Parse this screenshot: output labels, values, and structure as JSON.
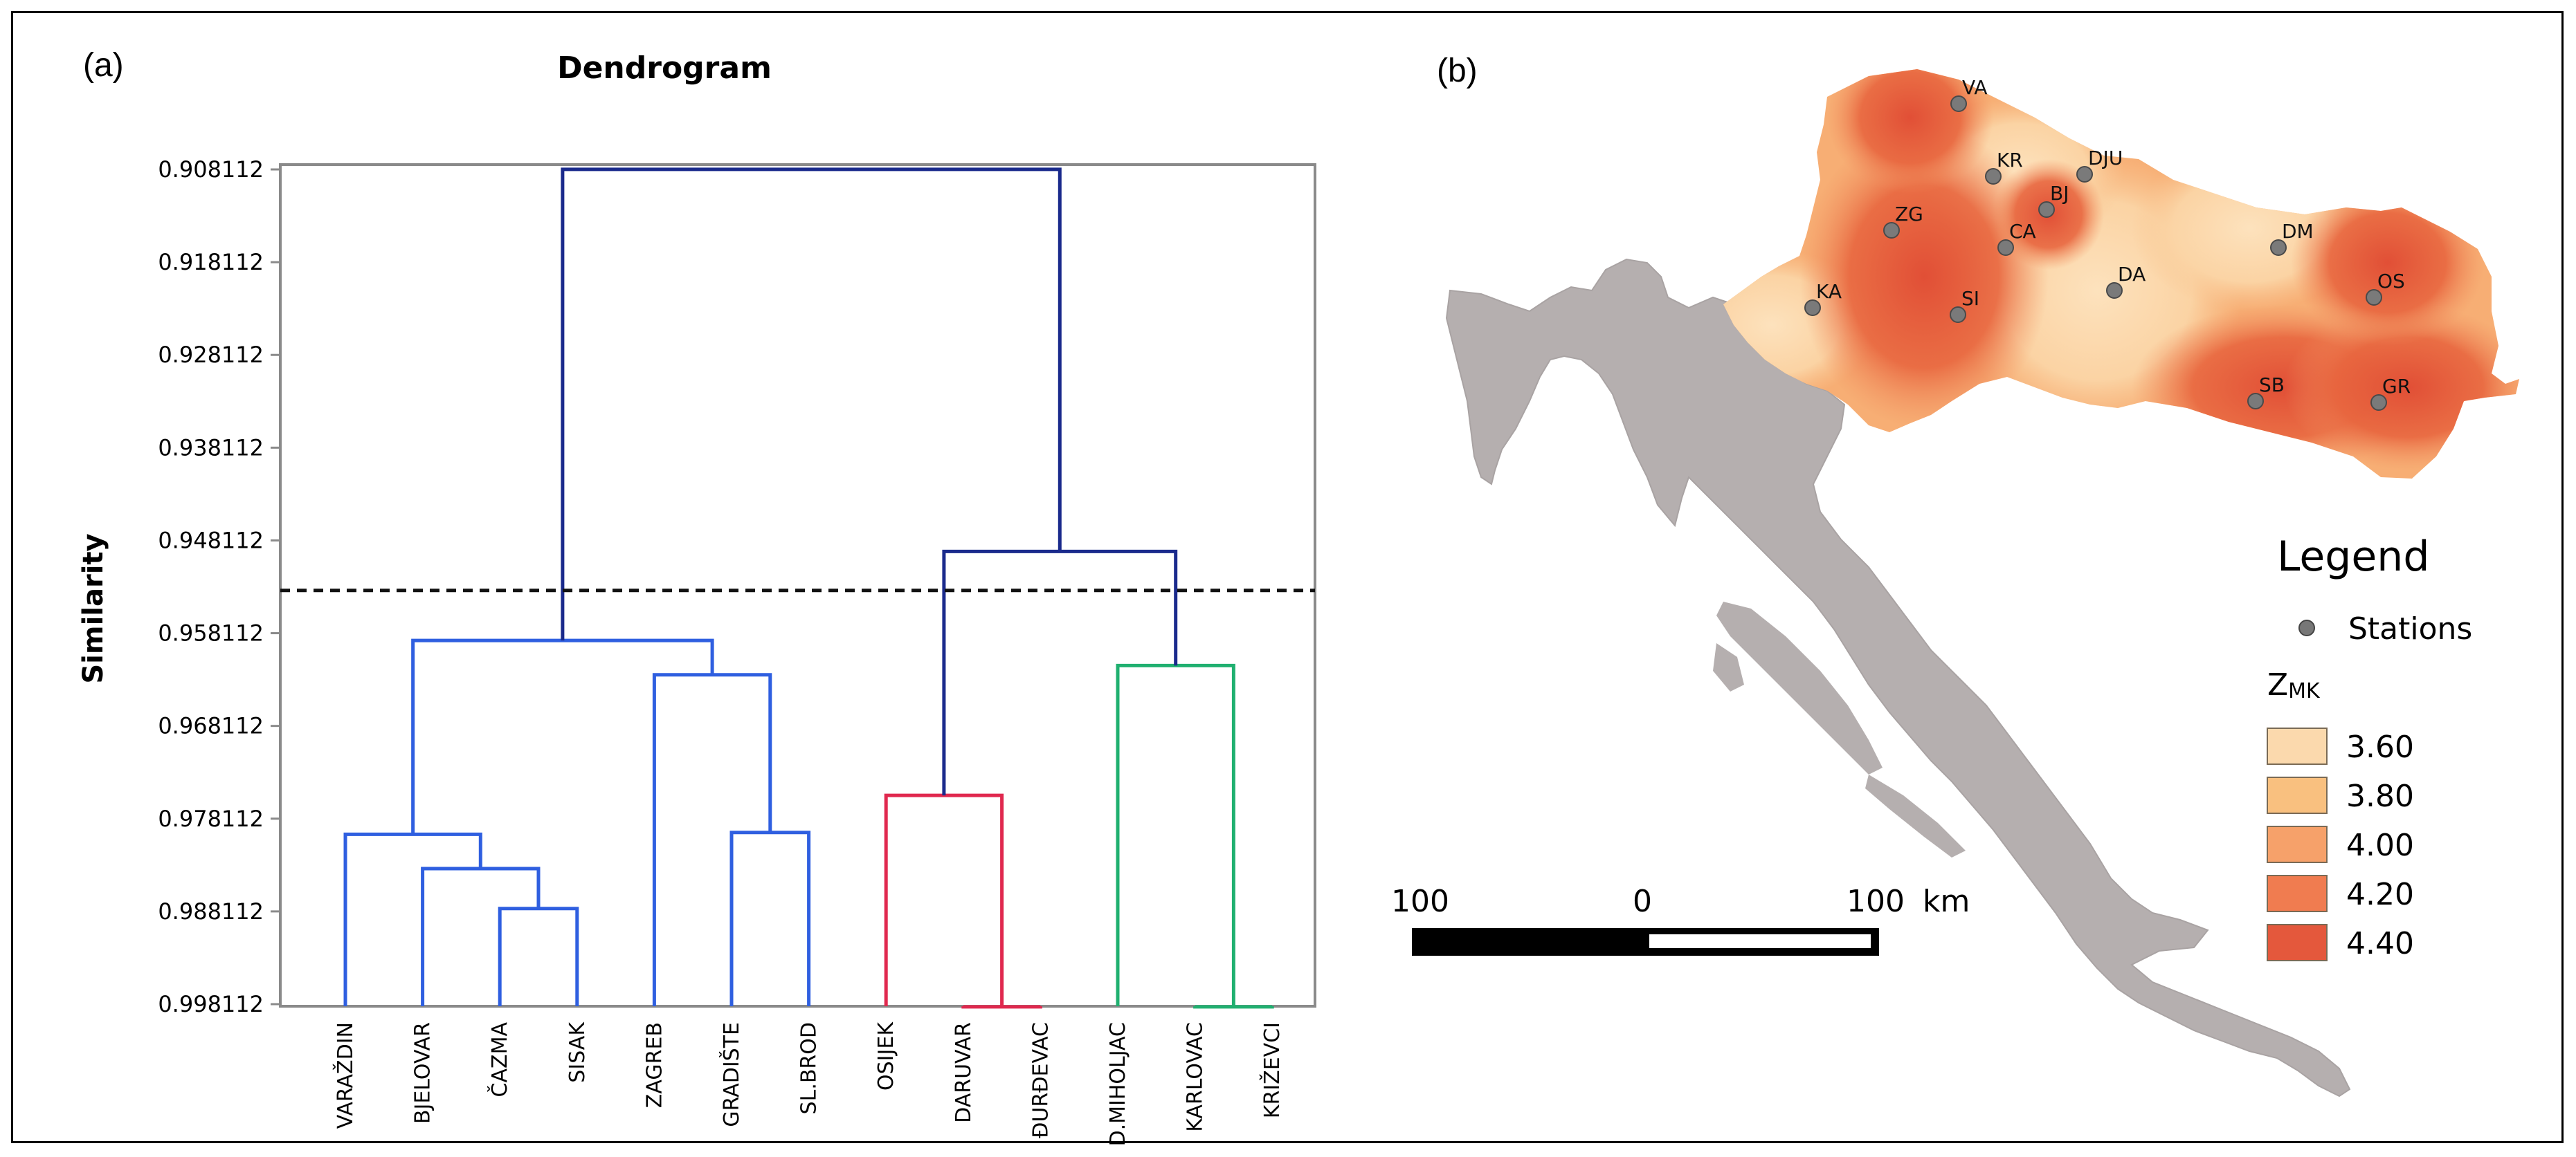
{
  "panel_a_label": "(a)",
  "panel_b_label": "(b)",
  "chart_data": {
    "type": "dendrogram",
    "title": "Dendrogram",
    "ylabel": "Similarity",
    "ylim": [
      0.908112,
      0.998112
    ],
    "yticks": [
      "0.908112",
      "0.918112",
      "0.928112",
      "0.938112",
      "0.948112",
      "0.958112",
      "0.968112",
      "0.978112",
      "0.988112",
      "0.998112"
    ],
    "cut_line": 0.9535,
    "leaves": [
      "VARAŽDIN",
      "BJELOVAR",
      "ČAZMA",
      "SISAK",
      "ZAGREB",
      "GRADIŠTE",
      "SL.BROD",
      "OSIJEK",
      "DARUVAR",
      "ĐURĐEVAC",
      "D.MIHOLJAC",
      "KARLOVAC",
      "KRIŽEVCI"
    ],
    "merges": [
      {
        "id": "m1",
        "left": "ČAZMA",
        "right": "SISAK",
        "height": 0.9878,
        "color": "#2f5fe0"
      },
      {
        "id": "m2",
        "left": "BJELOVAR",
        "right": "m1",
        "height": 0.9835,
        "color": "#2f5fe0"
      },
      {
        "id": "m3",
        "left": "VARAŽDIN",
        "right": "m2",
        "height": 0.9798,
        "color": "#2f5fe0"
      },
      {
        "id": "m4",
        "left": "GRADIŠTE",
        "right": "SL.BROD",
        "height": 0.9796,
        "color": "#2f5fe0"
      },
      {
        "id": "m5",
        "left": "ZAGREB",
        "right": "m4",
        "height": 0.9626,
        "color": "#2f5fe0"
      },
      {
        "id": "m6",
        "left": "m3",
        "right": "m5",
        "height": 0.9589,
        "color": "#2f5fe0"
      },
      {
        "id": "m7",
        "left": "DARUVAR",
        "right": "ĐURĐEVAC",
        "height": 0.9984,
        "color": "#e0284e"
      },
      {
        "id": "m8",
        "left": "OSIJEK",
        "right": "m7",
        "height": 0.9756,
        "color": "#e0284e"
      },
      {
        "id": "m9",
        "left": "KARLOVAC",
        "right": "KRIŽEVCI",
        "height": 0.9984,
        "color": "#20b070"
      },
      {
        "id": "m10",
        "left": "D.MIHOLJAC",
        "right": "m9",
        "height": 0.9616,
        "color": "#20b070"
      },
      {
        "id": "m11",
        "left": "m8",
        "right": "m10",
        "height": 0.9493,
        "color": "#1a2a8c"
      },
      {
        "id": "m12",
        "left": "m6",
        "right": "m11",
        "height": 0.9081,
        "color": "#1a2a8c"
      }
    ]
  },
  "map": {
    "legend_title": "Legend",
    "stations_label": "Stations",
    "zmk_label": "Z",
    "zmk_sub": "MK",
    "classes": [
      {
        "value": "3.60",
        "color": "#fbd9ad"
      },
      {
        "value": "3.80",
        "color": "#f9c07f"
      },
      {
        "value": "4.00",
        "color": "#f6a16a"
      },
      {
        "value": "4.20",
        "color": "#f07c50"
      },
      {
        "value": "4.40",
        "color": "#e4583c"
      }
    ],
    "stations": [
      "VA",
      "KR",
      "DJU",
      "BJ",
      "ZG",
      "CA",
      "DM",
      "DA",
      "KA",
      "SI",
      "OS",
      "SB",
      "GR"
    ],
    "scale": {
      "left": "100",
      "mid": "0",
      "right": "100",
      "unit": "km"
    }
  }
}
